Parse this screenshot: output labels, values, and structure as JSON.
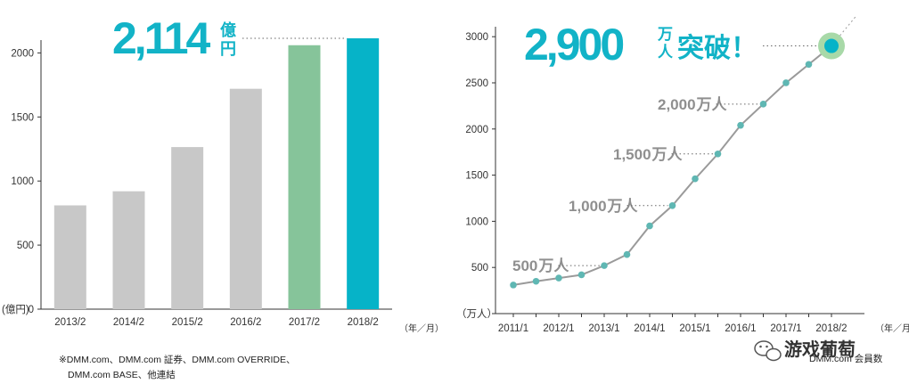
{
  "chart_data": [
    {
      "type": "bar",
      "title": "",
      "categories": [
        "2013/2",
        "2014/2",
        "2015/2",
        "2016/2",
        "2017/2",
        "2018/2"
      ],
      "values": [
        810,
        920,
        1265,
        1720,
        2060,
        2114
      ],
      "colors": [
        "#c8c8c8",
        "#c8c8c8",
        "#c8c8c8",
        "#c8c8c8",
        "#86c49a",
        "#06b3c8"
      ],
      "yticks": [
        0,
        500,
        1000,
        1500,
        2000
      ],
      "ylim": [
        0,
        2100
      ],
      "ylabel": "(億円)",
      "xlabel": "（年／月）",
      "grid": false,
      "highlight": {
        "value": "2,114",
        "unit_top": "億",
        "unit_bottom": "円"
      }
    },
    {
      "type": "line",
      "x": [
        "2011/1",
        "",
        "2012/1",
        "",
        "2013/1",
        "",
        "2014/1",
        "",
        "2015/1",
        "",
        "2016/1",
        "",
        "2017/1",
        "",
        "2018/2"
      ],
      "xticks": [
        "2011/1",
        "2012/1",
        "2013/1",
        "2014/1",
        "2015/1",
        "2016/1",
        "2017/1",
        "2018/2"
      ],
      "values": [
        310,
        350,
        385,
        420,
        520,
        640,
        950,
        1170,
        1460,
        1730,
        2040,
        2270,
        2500,
        2700,
        2900
      ],
      "color": "#9a9a9a",
      "marker_color": "#5fb7b3",
      "yticks": [
        0,
        500,
        1000,
        1500,
        2000,
        2500,
        3000
      ],
      "ylim": [
        0,
        3050
      ],
      "ylabel": "（万人）",
      "xlabel": "（年／月）",
      "grid": false,
      "annotations": [
        {
          "value": "500",
          "unit": "万人",
          "point_index": 4
        },
        {
          "value": "1,000",
          "unit": "万人",
          "point_index": 7
        },
        {
          "value": "1,500",
          "unit": "万人",
          "point_index": 9
        },
        {
          "value": "2,000",
          "unit": "万人",
          "point_index": 11
        }
      ],
      "highlight": {
        "value": "2,900",
        "unit_top": "万",
        "unit_bottom": "人",
        "suffix": "突破！"
      }
    }
  ],
  "footnote": {
    "line1": "※DMM.com、DMM.com 証券、DMM.com OVERRIDE、",
    "line2": "DMM.com BASE、他連結",
    "right_fragment": "DMM.com 会員数"
  },
  "watermark": {
    "text": "游戏葡萄",
    "icon": "wechat-icon"
  }
}
